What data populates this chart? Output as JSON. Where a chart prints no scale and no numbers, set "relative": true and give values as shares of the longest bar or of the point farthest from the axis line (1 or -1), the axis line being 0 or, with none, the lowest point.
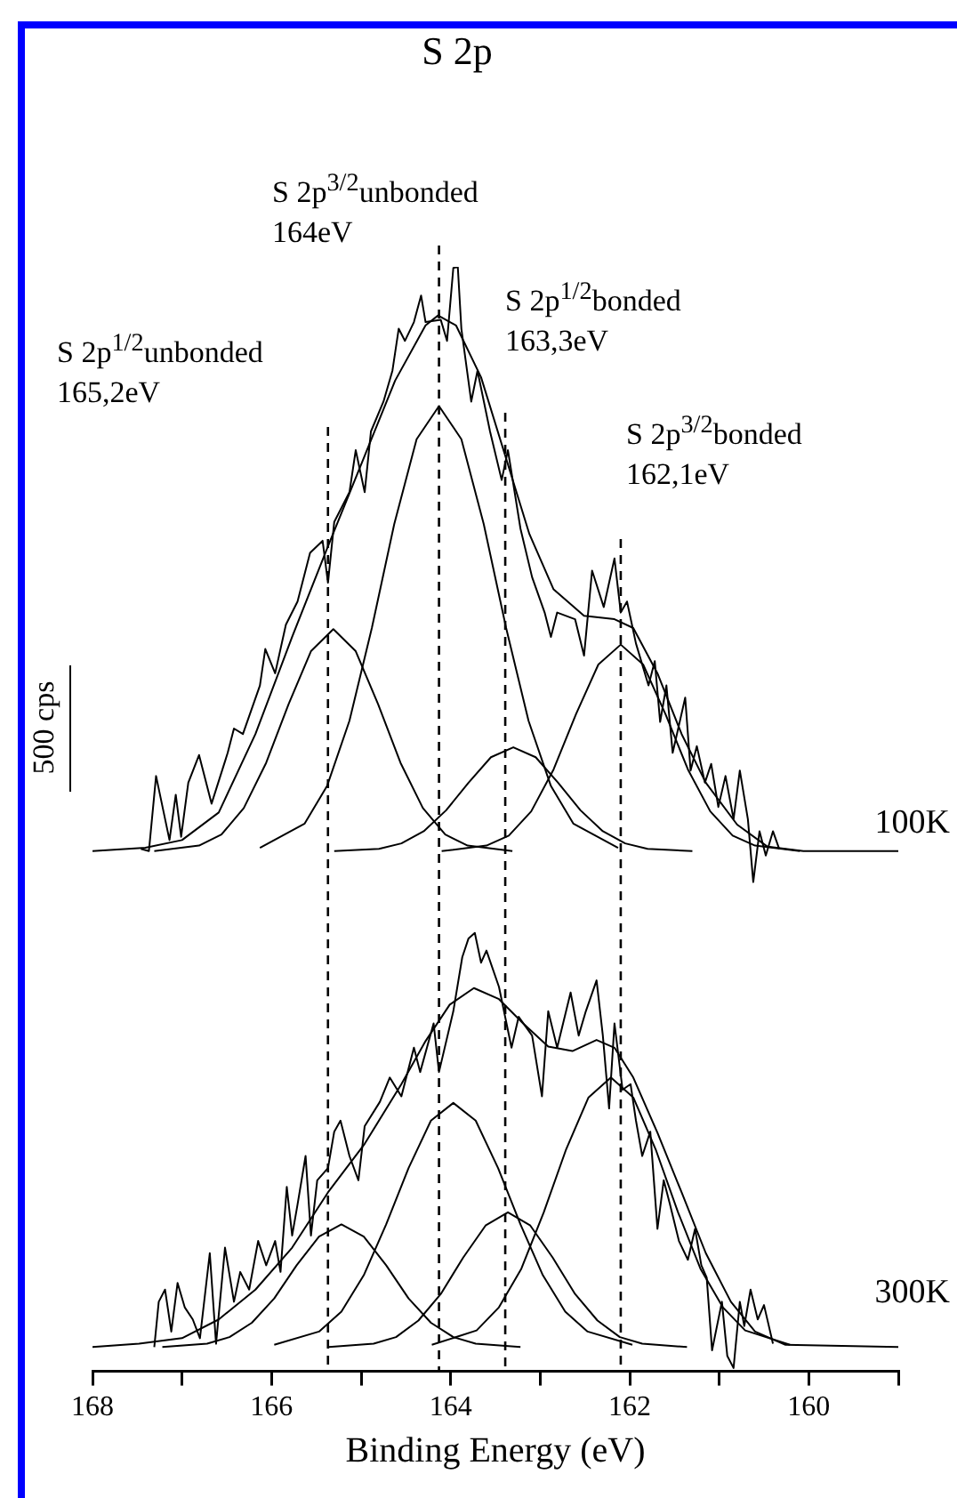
{
  "chart_data": {
    "type": "line",
    "title": "S 2p",
    "xlabel": "Binding Energy (eV)",
    "relative": true,
    "marker": "none",
    "line_style": "solid",
    "legend": false,
    "grid": false,
    "tick_labels": "x",
    "xlim": [
      168,
      159
    ],
    "xticks": [
      168,
      {
        "value": 167,
        "label": null
      },
      166,
      {
        "value": 165,
        "label": null
      },
      164,
      {
        "value": 163,
        "label": null
      },
      162,
      {
        "value": 161,
        "label": null
      },
      160,
      {
        "value": 159,
        "label": null
      }
    ],
    "annotations": [
      "100K",
      "300K",
      "500 cps"
    ],
    "ref_lines": [
      {
        "axis": "x",
        "value": 165.37,
        "label": "S 2p$^{1/2}$unbonded\n165,2eV",
        "line_style": "dashed",
        "color": "#000000"
      },
      {
        "axis": "x",
        "value": 164.13,
        "label": "S 2p$^{3/2}$unbonded\n164eV",
        "line_style": "dashed",
        "color": "#000000"
      },
      {
        "axis": "x",
        "value": 163.39,
        "label": "S 2p$^{1/2}$bonded\n163,3eV",
        "line_style": "dashed",
        "color": "#000000"
      },
      {
        "axis": "x",
        "value": 162.1,
        "label": "S 2p$^{3/2}$bonded\n162,1eV",
        "line_style": "dashed",
        "color": "#000000"
      }
    ],
    "series": [
      {
        "color": "#000000",
        "x": [
          167.46,
          167.37,
          167.29,
          167.14,
          167.07,
          167.01,
          166.93,
          166.81,
          166.67,
          166.49,
          166.42,
          166.32,
          166.13,
          166.07,
          165.96,
          165.84,
          165.71,
          165.57,
          165.43,
          165.37,
          165.3,
          165.13,
          165.06,
          164.96,
          164.89,
          164.75,
          164.65,
          164.58,
          164.51,
          164.41,
          164.33,
          164.28,
          164.11,
          164.04,
          163.97,
          163.92,
          163.88,
          163.77,
          163.7,
          163.56,
          163.43,
          163.36,
          163.22,
          163.09,
          162.95,
          162.88,
          162.81,
          162.61,
          162.51,
          162.42,
          162.29,
          162.17,
          162.1,
          162.03,
          161.93,
          161.79,
          161.72,
          161.66,
          161.59,
          161.52,
          161.38,
          161.32,
          161.25,
          161.16,
          161.09,
          161.01,
          160.93,
          160.84,
          160.77,
          160.68,
          160.62,
          160.55,
          160.48,
          160.4,
          160.33
        ],
        "values": [
          0.473,
          0.471,
          0.539,
          0.481,
          0.522,
          0.484,
          0.533,
          0.558,
          0.514,
          0.56,
          0.582,
          0.577,
          0.621,
          0.654,
          0.632,
          0.676,
          0.697,
          0.741,
          0.752,
          0.714,
          0.769,
          0.796,
          0.834,
          0.796,
          0.851,
          0.878,
          0.906,
          0.944,
          0.933,
          0.95,
          0.974,
          0.95,
          0.952,
          0.933,
          0.999,
          1.0,
          0.944,
          0.878,
          0.906,
          0.851,
          0.807,
          0.834,
          0.763,
          0.719,
          0.687,
          0.665,
          0.687,
          0.681,
          0.648,
          0.725,
          0.692,
          0.736,
          0.687,
          0.697,
          0.659,
          0.621,
          0.643,
          0.588,
          0.621,
          0.56,
          0.61,
          0.544,
          0.566,
          0.533,
          0.55,
          0.511,
          0.539,
          0.5,
          0.544,
          0.5,
          0.443,
          0.489,
          0.467,
          0.489,
          0.473
        ]
      },
      {
        "color": "#000000",
        "x": [
          168.0,
          167.41,
          167.0,
          166.59,
          166.18,
          165.77,
          165.37,
          164.96,
          164.62,
          164.28,
          164.14,
          163.94,
          163.66,
          163.39,
          163.12,
          162.85,
          162.51,
          162.17,
          161.96,
          161.69,
          161.42,
          161.15,
          160.8,
          160.46,
          160.06,
          159.0
        ],
        "values": [
          0.471,
          0.474,
          0.481,
          0.506,
          0.577,
          0.665,
          0.747,
          0.829,
          0.897,
          0.947,
          0.956,
          0.947,
          0.9,
          0.829,
          0.758,
          0.708,
          0.684,
          0.681,
          0.673,
          0.632,
          0.577,
          0.533,
          0.495,
          0.475,
          0.471,
          0.471
        ]
      },
      {
        "color": "#000000",
        "x": [
          167.31,
          166.81,
          166.56,
          166.31,
          166.06,
          165.81,
          165.56,
          165.31,
          165.06,
          164.81,
          164.56,
          164.31,
          164.06,
          163.81,
          163.31
        ],
        "values": [
          0.471,
          0.476,
          0.486,
          0.51,
          0.551,
          0.604,
          0.652,
          0.672,
          0.652,
          0.604,
          0.551,
          0.51,
          0.486,
          0.476,
          0.471
        ]
      },
      {
        "color": "#000000",
        "x": [
          166.13,
          165.63,
          165.38,
          165.13,
          164.88,
          164.63,
          164.38,
          164.13,
          163.88,
          163.63,
          163.38,
          163.13,
          162.88,
          162.63,
          162.13
        ],
        "values": [
          0.474,
          0.496,
          0.53,
          0.589,
          0.673,
          0.767,
          0.844,
          0.874,
          0.844,
          0.767,
          0.673,
          0.589,
          0.53,
          0.496,
          0.474
        ]
      },
      {
        "color": "#000000",
        "x": [
          165.3,
          164.8,
          164.55,
          164.3,
          164.05,
          163.8,
          163.55,
          163.3,
          163.05,
          162.8,
          162.55,
          162.3,
          162.05,
          161.8,
          161.3
        ],
        "values": [
          0.471,
          0.473,
          0.478,
          0.489,
          0.508,
          0.533,
          0.556,
          0.565,
          0.556,
          0.533,
          0.508,
          0.489,
          0.478,
          0.473,
          0.471
        ]
      },
      {
        "color": "#000000",
        "x": [
          164.1,
          163.6,
          163.35,
          163.1,
          162.85,
          162.6,
          162.35,
          162.1,
          161.85,
          161.6,
          161.35,
          161.1,
          160.85,
          160.6,
          160.1
        ],
        "values": [
          0.471,
          0.476,
          0.485,
          0.507,
          0.545,
          0.595,
          0.64,
          0.658,
          0.64,
          0.595,
          0.545,
          0.507,
          0.485,
          0.476,
          0.471
        ]
      },
      {
        "color": "#000000",
        "x": [
          167.31,
          167.26,
          167.19,
          167.12,
          167.05,
          166.97,
          166.88,
          166.8,
          166.69,
          166.62,
          166.52,
          166.42,
          166.35,
          166.25,
          166.15,
          166.06,
          165.96,
          165.9,
          165.83,
          165.77,
          165.71,
          165.62,
          165.56,
          165.49,
          165.37,
          165.3,
          165.23,
          165.13,
          165.03,
          164.96,
          164.79,
          164.68,
          164.55,
          164.41,
          164.34,
          164.19,
          164.13,
          163.97,
          163.87,
          163.8,
          163.73,
          163.66,
          163.6,
          163.46,
          163.32,
          163.24,
          163.09,
          162.98,
          162.91,
          162.81,
          162.66,
          162.57,
          162.49,
          162.37,
          162.3,
          162.23,
          162.17,
          162.08,
          161.99,
          161.93,
          161.86,
          161.77,
          161.69,
          161.62,
          161.55,
          161.45,
          161.35,
          161.27,
          161.2,
          161.14,
          161.08,
          160.97,
          160.91,
          160.84,
          160.77,
          160.72,
          160.65,
          160.57,
          160.5,
          160.4
        ],
        "values": [
          0.022,
          0.063,
          0.074,
          0.036,
          0.08,
          0.058,
          0.047,
          0.03,
          0.107,
          0.025,
          0.112,
          0.063,
          0.09,
          0.074,
          0.118,
          0.096,
          0.118,
          0.09,
          0.167,
          0.123,
          0.151,
          0.195,
          0.123,
          0.173,
          0.184,
          0.217,
          0.227,
          0.195,
          0.173,
          0.222,
          0.244,
          0.266,
          0.249,
          0.293,
          0.271,
          0.315,
          0.271,
          0.326,
          0.375,
          0.392,
          0.397,
          0.37,
          0.381,
          0.348,
          0.293,
          0.321,
          0.304,
          0.249,
          0.326,
          0.293,
          0.343,
          0.304,
          0.326,
          0.354,
          0.304,
          0.238,
          0.315,
          0.255,
          0.26,
          0.227,
          0.195,
          0.217,
          0.129,
          0.173,
          0.151,
          0.118,
          0.101,
          0.129,
          0.096,
          0.085,
          0.019,
          0.063,
          0.014,
          0.003,
          0.063,
          0.041,
          0.074,
          0.047,
          0.06,
          0.025
        ]
      },
      {
        "color": "#000000",
        "x": [
          168.0,
          167.48,
          167.0,
          166.59,
          166.18,
          165.77,
          165.37,
          164.96,
          164.55,
          164.28,
          164.01,
          163.74,
          163.46,
          163.19,
          162.91,
          162.64,
          162.37,
          162.17,
          161.96,
          161.69,
          161.42,
          161.15,
          160.87,
          160.6,
          160.26,
          159.0
        ],
        "values": [
          0.022,
          0.025,
          0.03,
          0.047,
          0.074,
          0.112,
          0.162,
          0.206,
          0.26,
          0.299,
          0.332,
          0.347,
          0.337,
          0.315,
          0.294,
          0.29,
          0.3,
          0.293,
          0.266,
          0.216,
          0.162,
          0.107,
          0.063,
          0.036,
          0.024,
          0.022
        ]
      },
      {
        "color": "#000000",
        "x": [
          167.22,
          166.72,
          166.47,
          166.22,
          165.97,
          165.72,
          165.47,
          165.22,
          164.97,
          164.72,
          164.47,
          164.22,
          163.97,
          163.72,
          163.22
        ],
        "values": [
          0.022,
          0.025,
          0.031,
          0.044,
          0.066,
          0.096,
          0.122,
          0.133,
          0.122,
          0.096,
          0.066,
          0.044,
          0.031,
          0.025,
          0.022
        ]
      },
      {
        "color": "#000000",
        "x": [
          165.97,
          165.47,
          165.22,
          164.97,
          164.72,
          164.47,
          164.22,
          163.97,
          163.72,
          163.47,
          163.22,
          162.97,
          162.72,
          162.47,
          161.97
        ],
        "values": [
          0.024,
          0.036,
          0.054,
          0.087,
          0.133,
          0.184,
          0.227,
          0.243,
          0.227,
          0.184,
          0.133,
          0.087,
          0.054,
          0.036,
          0.024
        ]
      },
      {
        "color": "#000000",
        "x": [
          165.36,
          164.86,
          164.61,
          164.36,
          164.11,
          163.86,
          163.61,
          163.36,
          163.11,
          162.86,
          162.61,
          162.36,
          162.11,
          161.86,
          161.36
        ],
        "values": [
          0.022,
          0.025,
          0.031,
          0.046,
          0.07,
          0.103,
          0.132,
          0.144,
          0.132,
          0.103,
          0.07,
          0.046,
          0.031,
          0.025,
          0.022
        ]
      },
      {
        "color": "#000000",
        "x": [
          164.21,
          163.71,
          163.46,
          163.21,
          162.96,
          162.71,
          162.46,
          162.21,
          161.96,
          161.71,
          161.46,
          161.21,
          160.96,
          160.71,
          160.21
        ],
        "values": [
          0.024,
          0.037,
          0.058,
          0.093,
          0.144,
          0.201,
          0.248,
          0.266,
          0.248,
          0.201,
          0.144,
          0.093,
          0.058,
          0.037,
          0.024
        ]
      }
    ]
  }
}
